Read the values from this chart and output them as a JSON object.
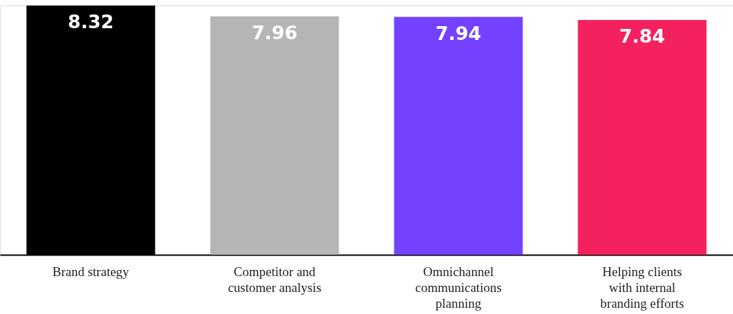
{
  "chart_data": {
    "type": "bar",
    "categories": [
      "Brand strategy",
      "Competitor and customer analysis",
      "Omnichannel communications planning",
      "Helping clients with internal branding efforts"
    ],
    "values": [
      8.32,
      7.96,
      7.94,
      7.84
    ],
    "colors": [
      "#000000",
      "#b5b5b5",
      "#7341ff",
      "#f5215e"
    ],
    "data_labels": true,
    "tick_labels": "x"
  }
}
